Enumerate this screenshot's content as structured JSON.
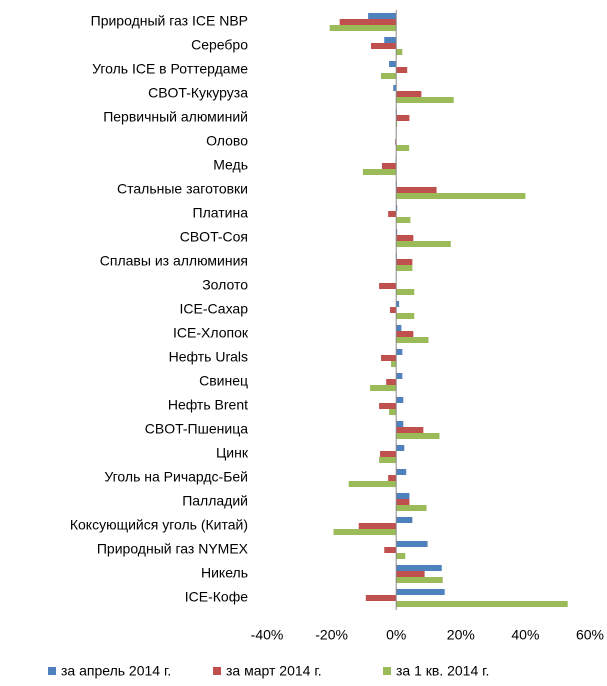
{
  "chart_data": {
    "type": "bar",
    "orientation": "horizontal",
    "categories": [
      "Природный газ ICE NBP",
      "Серебро",
      "Уголь ICE в Роттердаме",
      "CBOT-Кукуруза",
      "Первичный алюминий",
      "Олово",
      "Медь",
      "Стальные заготовки",
      "Платина",
      "CBOT-Соя",
      "Сплавы из аллюминия",
      "Золото",
      "ICE-Сахар",
      "ICE-Хлопок",
      "Нефть Urals",
      "Свинец",
      "Нефть Brent",
      "CBOT-Пшеница",
      "Цинк",
      "Уголь на Ричардс-Бей",
      "Палладий",
      "Коксующийся уголь (Китай)",
      "Природный газ NYMEX",
      "Никель",
      "ICE-Кофе"
    ],
    "series": [
      {
        "name": "за апрель 2014 г.",
        "color": "#4f81bd",
        "values": [
          -8.7,
          -3.7,
          -2.2,
          -0.9,
          0.2,
          0.1,
          -0.2,
          0.2,
          0.3,
          0.3,
          0.2,
          0,
          0.9,
          1.6,
          1.9,
          1.9,
          2.2,
          2.2,
          2.5,
          3.1,
          4.1,
          5,
          9.7,
          14.1,
          15
        ]
      },
      {
        "name": "за март 2014 г.",
        "color": "#c0504d",
        "values": [
          -17.5,
          -7.8,
          3.4,
          7.8,
          4.1,
          -0.3,
          -4.4,
          12.5,
          -2.5,
          5.3,
          5,
          -5.3,
          -1.9,
          5.3,
          -4.7,
          -3.1,
          -5.3,
          8.4,
          -5,
          -2.5,
          4.1,
          -11.6,
          -3.7,
          8.8,
          -9.4
        ]
      },
      {
        "name": "за 1 кв. 2014 г.",
        "color": "#9bbb59",
        "values": [
          -20.6,
          1.9,
          -4.7,
          17.8,
          0.3,
          4,
          -10.3,
          40,
          4.4,
          16.9,
          5,
          5.6,
          5.6,
          10,
          -1.6,
          -8.1,
          -2.2,
          13.4,
          -5.3,
          -14.7,
          9.4,
          -19.4,
          2.8,
          14.4,
          53.1
        ]
      }
    ],
    "xlim": [
      -40,
      60
    ],
    "xticks": [
      {
        "value": -40,
        "label": "-40%"
      },
      {
        "value": -20,
        "label": "-20%"
      },
      {
        "value": 0,
        "label": "0%"
      },
      {
        "value": 20,
        "label": "20%"
      },
      {
        "value": 40,
        "label": "40%"
      },
      {
        "value": 60,
        "label": "60%"
      }
    ],
    "grid": false,
    "legend": "bottom"
  }
}
